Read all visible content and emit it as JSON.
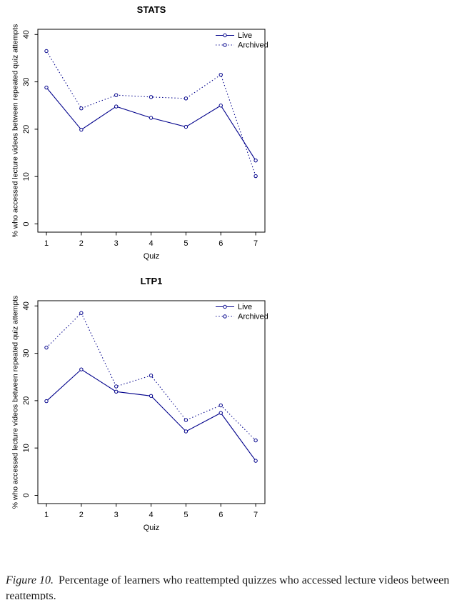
{
  "page": {
    "background": "#ffffff",
    "text_color": "#000000",
    "caption": {
      "label": "Figure 10.",
      "text": "Percentage of learners who reattempted quizzes who accessed lecture videos between reattempts."
    }
  },
  "chart_data": [
    {
      "type": "line",
      "title": "STATS",
      "xlabel": "Quiz",
      "ylabel": "% who accessed lecture videos between repeated quiz attempts",
      "x": [
        1,
        2,
        3,
        4,
        5,
        6,
        7
      ],
      "xticks": [
        1,
        2,
        3,
        4,
        5,
        6,
        7
      ],
      "yticks": [
        0,
        10,
        20,
        30,
        40
      ],
      "ylim": [
        0,
        40
      ],
      "grid": false,
      "legend_position": "top-right",
      "line_color": "#00008B",
      "series": [
        {
          "name": "Live",
          "style": "solid",
          "marker": "circle",
          "values": [
            28.8,
            19.9,
            24.8,
            22.4,
            20.5,
            25.0,
            13.4
          ]
        },
        {
          "name": "Archived",
          "style": "dotted",
          "marker": "circle",
          "values": [
            36.5,
            24.4,
            27.2,
            26.8,
            26.5,
            31.5,
            10.1
          ]
        }
      ]
    },
    {
      "type": "line",
      "title": "LTP1",
      "xlabel": "Quiz",
      "ylabel": "% who accessed lecture videos between repeated quiz attempts",
      "x": [
        1,
        2,
        3,
        4,
        5,
        6,
        7
      ],
      "xticks": [
        1,
        2,
        3,
        4,
        5,
        6,
        7
      ],
      "yticks": [
        0,
        10,
        20,
        30,
        40
      ],
      "ylim": [
        0,
        40
      ],
      "grid": false,
      "legend_position": "top-right",
      "line_color": "#00008B",
      "series": [
        {
          "name": "Live",
          "style": "solid",
          "marker": "circle",
          "values": [
            19.9,
            26.6,
            21.9,
            21.0,
            13.5,
            17.4,
            7.3
          ]
        },
        {
          "name": "Archived",
          "style": "dotted",
          "marker": "circle",
          "values": [
            31.2,
            38.5,
            23.0,
            25.3,
            15.9,
            19.0,
            11.6
          ]
        }
      ]
    }
  ]
}
